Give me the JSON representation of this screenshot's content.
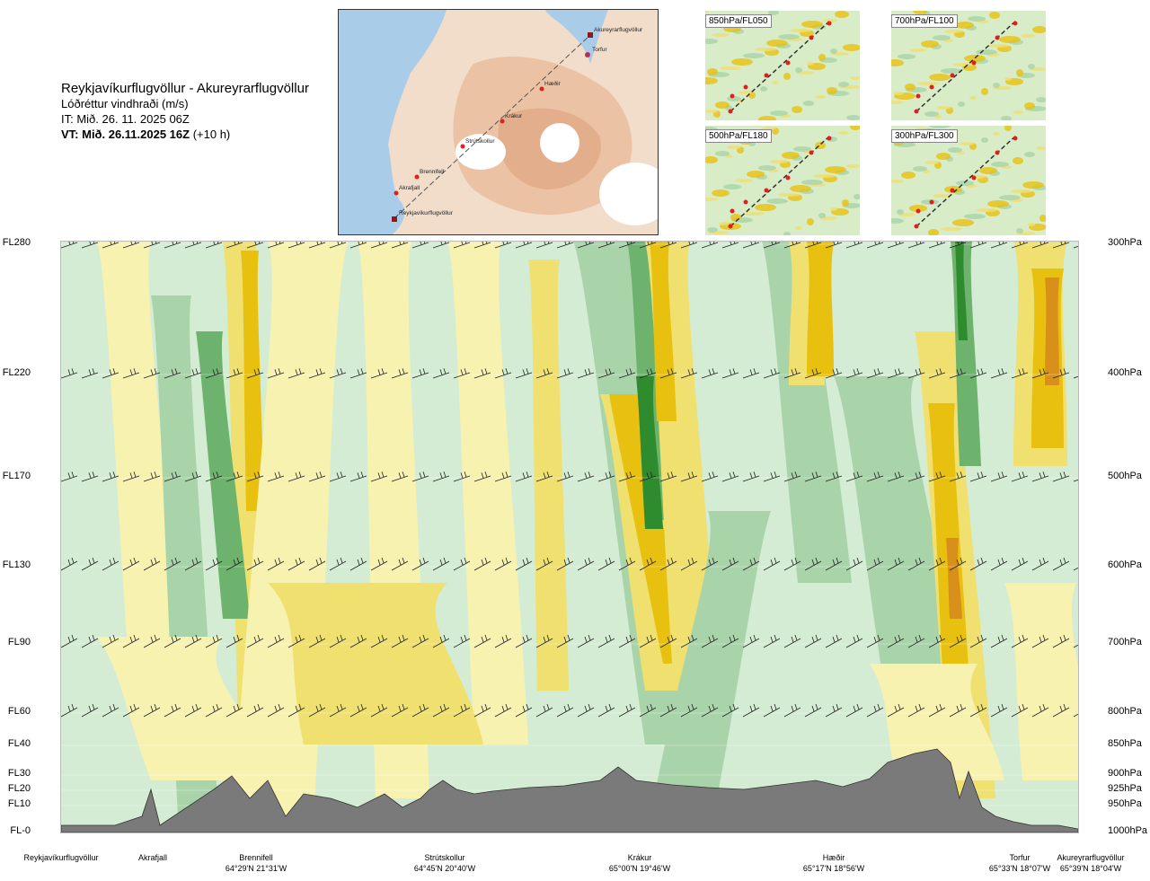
{
  "title": {
    "route": "Reykjavíkurflugvöllur - Akureyrarflugvöllur",
    "parameter": "Lóðréttur vindhraði (m/s)",
    "issue_time": "IT: Mið. 26. 11. 2025 06Z",
    "valid_time": "VT: Mið. 26.11.2025 16Z",
    "lead": "(+10 h)"
  },
  "map": {
    "waypoints": [
      "Akureyrarflugvöllur",
      "Torfur",
      "Hæðir",
      "Krákur",
      "Strútskollur",
      "Brennifell",
      "Akrafjall",
      "Reykjavíkurflugvöllur"
    ]
  },
  "mini_maps": [
    {
      "label": "850hPa/FL050"
    },
    {
      "label": "700hPa/FL100"
    },
    {
      "label": "500hPa/FL180"
    },
    {
      "label": "300hPa/FL300"
    }
  ],
  "levels": [
    {
      "fl": "FL280",
      "hpa": "300hPa"
    },
    {
      "fl": "FL220",
      "hpa": "400hPa"
    },
    {
      "fl": "FL170",
      "hpa": "500hPa"
    },
    {
      "fl": "FL130",
      "hpa": "600hPa"
    },
    {
      "fl": "FL90",
      "hpa": "700hPa"
    },
    {
      "fl": "FL60",
      "hpa": "800hPa"
    },
    {
      "fl": "FL40",
      "hpa": "850hPa"
    },
    {
      "fl": "FL30",
      "hpa": "900hPa"
    },
    {
      "fl": "FL20",
      "hpa": "925hPa"
    },
    {
      "fl": "FL10",
      "hpa": "950hPa"
    },
    {
      "fl": "FL-0",
      "hpa": "1000hPa"
    }
  ],
  "locations": [
    {
      "name": "Reykjavíkurflugvöllur",
      "coord": ""
    },
    {
      "name": "Akrafjall",
      "coord": ""
    },
    {
      "name": "Brennifell",
      "coord": "64°29'N 21°31'W"
    },
    {
      "name": "Strútskollur",
      "coord": "64°45'N 20°40'W"
    },
    {
      "name": "Krákur",
      "coord": "65°00'N 19°46'W"
    },
    {
      "name": "Hæðir",
      "coord": "65°17'N 18°56'W"
    },
    {
      "name": "Torfur",
      "coord": "65°33'N 18°07'W"
    },
    {
      "name": "Akureyrarflugvöllur",
      "coord": "65°39'N 18°04'W"
    }
  ],
  "colors": {
    "strong_down": "#2e8b2e",
    "mod_down": "#6db36d",
    "weak_down": "#a9d3a9",
    "weakest_down": "#d4ecd4",
    "weakest_up": "#f7f2b0",
    "weak_up": "#efe070",
    "mod_up": "#e8c010",
    "strong_up": "#d9901a",
    "terrain": "#7a7a7a"
  }
}
